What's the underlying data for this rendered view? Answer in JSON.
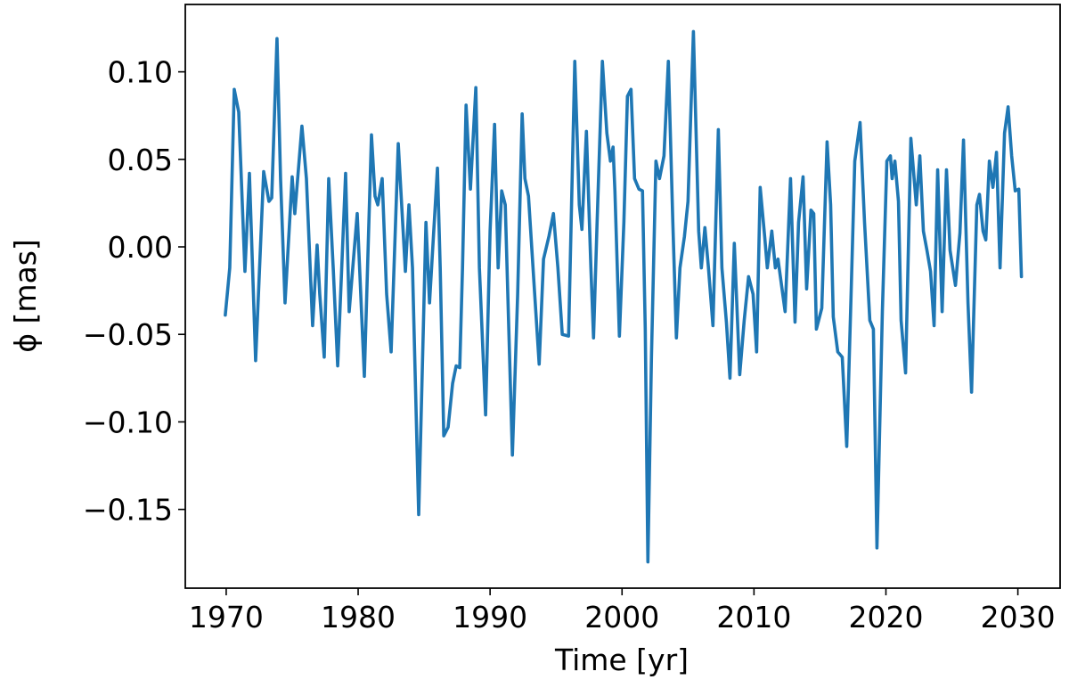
{
  "chart_data": {
    "type": "line",
    "xlabel": "Time [yr]",
    "ylabel": "ϕ [mas]",
    "color": "#1f77b4",
    "xlim": [
      1966.9,
      2033.2
    ],
    "ylim": [
      -0.195,
      0.1385
    ],
    "xticks": [
      1970,
      1980,
      1990,
      2000,
      2010,
      2020,
      2030
    ],
    "yticks": [
      {
        "value": 0.1,
        "label": "0.10"
      },
      {
        "value": 0.05,
        "label": "0.05"
      },
      {
        "value": 0.0,
        "label": "0.00"
      },
      {
        "value": -0.05,
        "label": "−0.05"
      },
      {
        "value": -0.1,
        "label": "−0.10"
      },
      {
        "value": -0.15,
        "label": "−0.15"
      }
    ],
    "grid": false,
    "x": [
      1969.93,
      1970.27,
      1970.61,
      1970.95,
      1971.42,
      1971.76,
      1972.23,
      1972.84,
      1973.24,
      1973.45,
      1973.85,
      1974.12,
      1974.46,
      1975.0,
      1975.2,
      1975.74,
      1976.08,
      1976.55,
      1976.89,
      1977.09,
      1977.43,
      1977.77,
      1978.11,
      1978.45,
      1979.05,
      1979.32,
      1979.93,
      1980.47,
      1981.01,
      1981.28,
      1981.49,
      1981.82,
      1982.16,
      1982.5,
      1983.04,
      1983.58,
      1983.85,
      1984.12,
      1984.59,
      1985.14,
      1985.41,
      1986.01,
      1986.22,
      1986.49,
      1986.82,
      1987.16,
      1987.43,
      1987.7,
      1987.91,
      1988.18,
      1988.51,
      1988.92,
      1989.19,
      1989.66,
      1990.0,
      1990.34,
      1990.61,
      1990.88,
      1991.15,
      1991.69,
      1992.09,
      1992.43,
      1992.64,
      1992.91,
      1993.38,
      1993.72,
      1994.05,
      1994.46,
      1994.8,
      1995.14,
      1995.47,
      1995.95,
      1996.42,
      1996.76,
      1996.96,
      1997.3,
      1997.64,
      1997.84,
      1998.11,
      1998.51,
      1998.85,
      1999.12,
      1999.32,
      1999.46,
      1999.8,
      2000.14,
      2000.41,
      2000.68,
      2000.95,
      2001.28,
      2001.55,
      2001.76,
      2001.96,
      2002.23,
      2002.57,
      2002.84,
      2003.18,
      2003.51,
      2003.85,
      2004.12,
      2004.39,
      2004.73,
      2005.0,
      2005.41,
      2005.81,
      2006.01,
      2006.28,
      2006.55,
      2006.89,
      2007.3,
      2007.57,
      2007.91,
      2008.18,
      2008.51,
      2008.92,
      2009.26,
      2009.59,
      2009.93,
      2010.2,
      2010.47,
      2010.81,
      2011.01,
      2011.35,
      2011.62,
      2011.82,
      2012.09,
      2012.36,
      2012.77,
      2013.11,
      2013.38,
      2013.72,
      2013.99,
      2014.32,
      2014.53,
      2014.73,
      2015.14,
      2015.54,
      2015.81,
      2016.01,
      2016.35,
      2016.69,
      2017.03,
      2017.36,
      2017.64,
      2018.04,
      2018.38,
      2018.78,
      2019.05,
      2019.32,
      2019.73,
      2020.07,
      2020.34,
      2020.47,
      2020.68,
      2020.95,
      2021.15,
      2021.49,
      2021.89,
      2022.3,
      2022.57,
      2022.84,
      2023.11,
      2023.38,
      2023.65,
      2023.92,
      2024.26,
      2024.59,
      2024.86,
      2025.27,
      2025.61,
      2025.88,
      2026.22,
      2026.49,
      2026.89,
      2027.09,
      2027.36,
      2027.57,
      2027.84,
      2028.11,
      2028.38,
      2028.65,
      2028.99,
      2029.26,
      2029.53,
      2029.8,
      2030.07,
      2030.27
    ],
    "values": [
      -0.039,
      -0.012,
      0.09,
      0.077,
      -0.014,
      0.042,
      -0.065,
      0.043,
      0.026,
      0.028,
      0.119,
      0.039,
      -0.032,
      0.04,
      0.019,
      0.069,
      0.039,
      -0.045,
      0.001,
      -0.027,
      -0.063,
      0.039,
      -0.012,
      -0.068,
      0.042,
      -0.037,
      0.019,
      -0.074,
      0.064,
      0.029,
      0.024,
      0.039,
      -0.027,
      -0.06,
      0.059,
      -0.014,
      0.024,
      -0.012,
      -0.153,
      0.014,
      -0.032,
      0.045,
      -0.012,
      -0.108,
      -0.103,
      -0.078,
      -0.068,
      -0.069,
      -0.012,
      0.081,
      0.033,
      0.091,
      -0.012,
      -0.096,
      0.009,
      0.07,
      -0.012,
      0.032,
      0.024,
      -0.119,
      -0.027,
      0.076,
      0.039,
      0.029,
      -0.027,
      -0.067,
      -0.007,
      0.006,
      0.019,
      -0.012,
      -0.05,
      -0.051,
      0.106,
      0.024,
      0.01,
      0.066,
      -0.012,
      -0.052,
      0.014,
      0.106,
      0.065,
      0.049,
      0.057,
      0.032,
      -0.051,
      0.014,
      0.086,
      0.09,
      0.039,
      0.033,
      0.032,
      -0.047,
      -0.18,
      -0.063,
      0.049,
      0.039,
      0.052,
      0.106,
      0.014,
      -0.052,
      -0.012,
      0.006,
      0.026,
      0.123,
      0.009,
      -0.012,
      0.011,
      -0.012,
      -0.045,
      0.067,
      -0.012,
      -0.043,
      -0.075,
      0.002,
      -0.073,
      -0.042,
      -0.017,
      -0.027,
      -0.06,
      0.034,
      0.006,
      -0.012,
      0.009,
      -0.012,
      -0.007,
      -0.022,
      -0.037,
      0.039,
      -0.043,
      0.014,
      0.04,
      -0.024,
      0.021,
      0.019,
      -0.047,
      -0.035,
      0.06,
      0.024,
      -0.04,
      -0.06,
      -0.063,
      -0.114,
      -0.027,
      0.049,
      0.071,
      0.014,
      -0.042,
      -0.047,
      -0.172,
      -0.037,
      0.049,
      0.052,
      0.039,
      0.049,
      0.026,
      -0.042,
      -0.072,
      0.062,
      0.024,
      0.052,
      0.009,
      -0.002,
      -0.014,
      -0.045,
      0.044,
      -0.037,
      0.044,
      -0.002,
      -0.022,
      0.008,
      0.061,
      -0.032,
      -0.083,
      0.024,
      0.03,
      0.009,
      0.004,
      0.049,
      0.034,
      0.054,
      -0.012,
      0.065,
      0.08,
      0.052,
      0.032,
      0.033,
      -0.017
    ]
  }
}
